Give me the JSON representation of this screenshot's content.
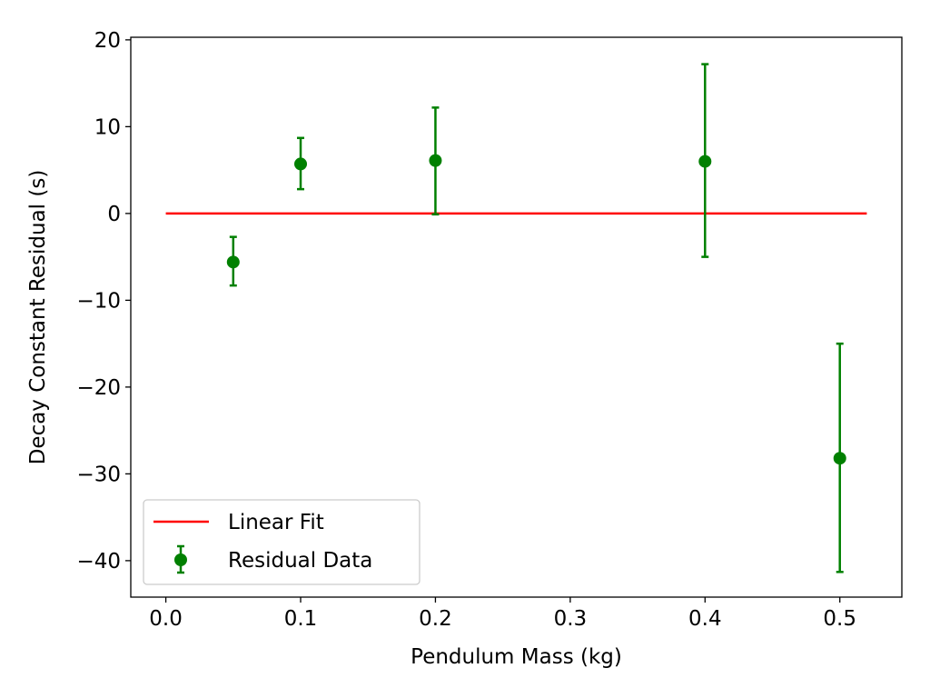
{
  "chart_data": {
    "type": "scatter",
    "title": "",
    "xlabel": "Pendulum Mass (kg)",
    "ylabel": "Decay Constant Residual (s)",
    "xlim": [
      -0.026,
      0.546
    ],
    "ylim": [
      -44.2,
      20.3
    ],
    "xticks": [
      0.0,
      0.1,
      0.2,
      0.3,
      0.4,
      0.5
    ],
    "xtick_labels": [
      "0.0",
      "0.1",
      "0.2",
      "0.3",
      "0.4",
      "0.5"
    ],
    "yticks": [
      20,
      10,
      0,
      -10,
      -20,
      -30,
      -40
    ],
    "ytick_labels": [
      "20",
      "10",
      "0",
      "−10",
      "−20",
      "−30",
      "−40"
    ],
    "grid": false,
    "legend_position": "lower-left",
    "series": [
      {
        "name": "Linear Fit",
        "kind": "line",
        "color": "#ff0000",
        "x": [
          0.0,
          0.52
        ],
        "y": [
          0.0,
          0.0
        ]
      },
      {
        "name": "Residual Data",
        "kind": "errorbar",
        "color": "#008000",
        "x": [
          0.05,
          0.1,
          0.2,
          0.4,
          0.5
        ],
        "y": [
          -5.6,
          5.7,
          6.1,
          6.0,
          -28.2
        ],
        "yerr_low": [
          2.7,
          2.9,
          6.2,
          11.0,
          13.1
        ],
        "yerr_high": [
          2.9,
          3.0,
          6.1,
          11.2,
          13.2
        ]
      }
    ]
  }
}
